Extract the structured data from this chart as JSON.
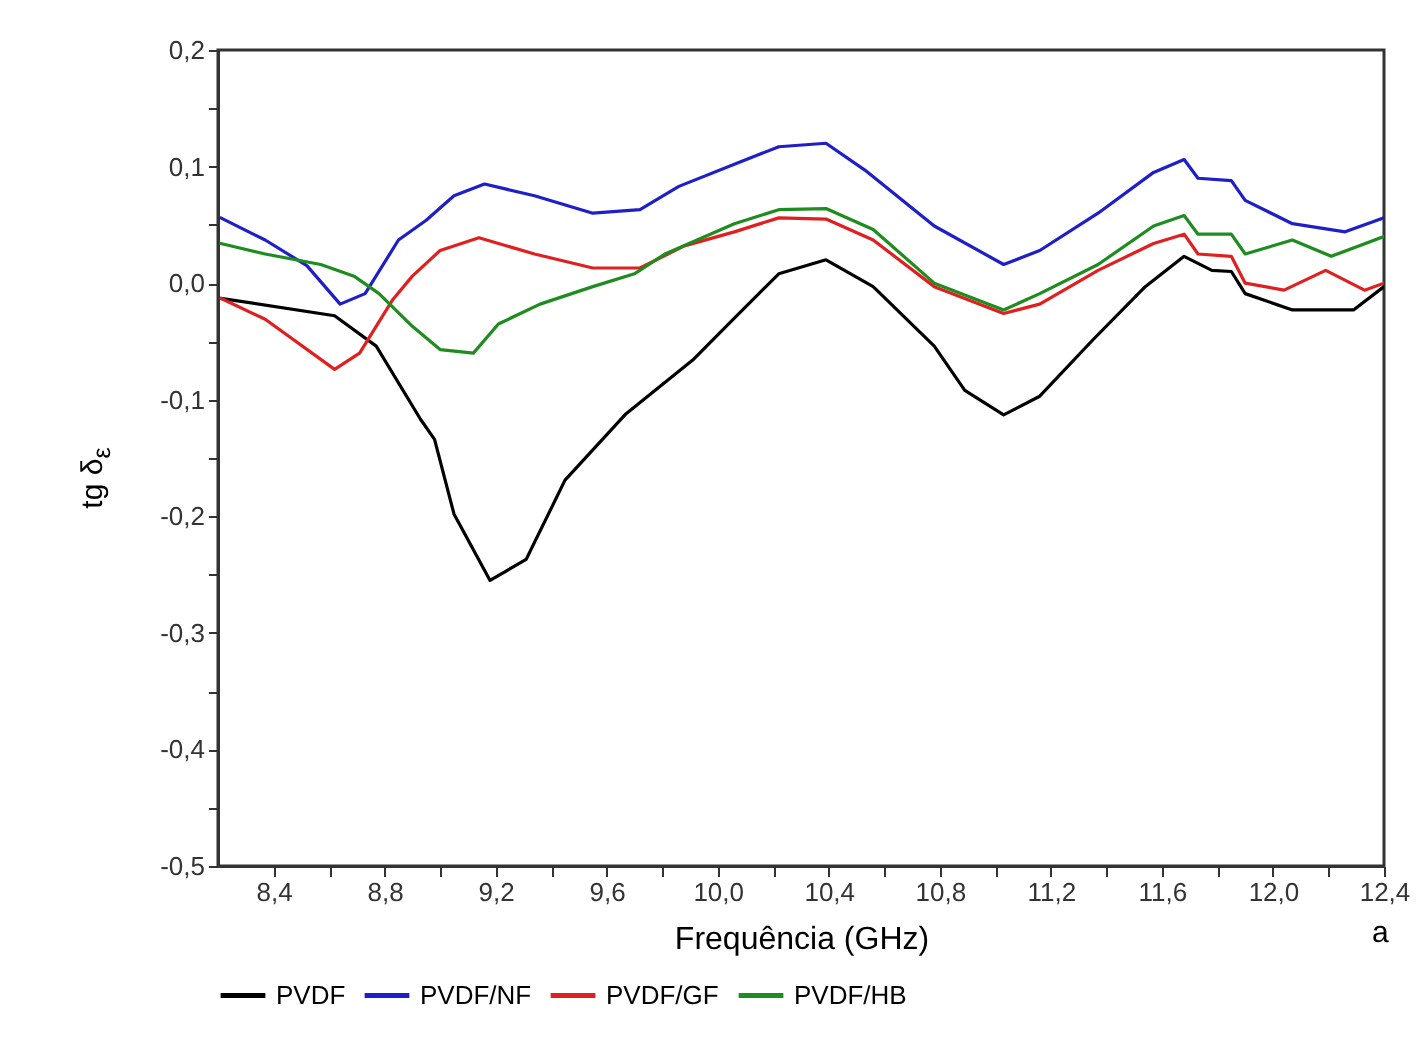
{
  "chart_data": {
    "type": "line",
    "xlabel": "Frequência (GHz)",
    "ylabel": "tg δ$_{ε}$",
    "annotations": [
      "a"
    ],
    "xlim": [
      8.2,
      12.4
    ],
    "ylim": [
      -0.5,
      0.2
    ],
    "xticks": [
      {
        "value": 8.4,
        "label": "8,4"
      },
      {
        "value": 8.6,
        "label": null
      },
      {
        "value": 8.8,
        "label": "8,8"
      },
      {
        "value": 9.0,
        "label": null
      },
      {
        "value": 9.2,
        "label": "9,2"
      },
      {
        "value": 9.4,
        "label": null
      },
      {
        "value": 9.6,
        "label": "9,6"
      },
      {
        "value": 9.8,
        "label": null
      },
      {
        "value": 10.0,
        "label": "10,0"
      },
      {
        "value": 10.2,
        "label": null
      },
      {
        "value": 10.4,
        "label": "10,4"
      },
      {
        "value": 10.6,
        "label": null
      },
      {
        "value": 10.8,
        "label": "10,8"
      },
      {
        "value": 11.0,
        "label": null
      },
      {
        "value": 11.2,
        "label": "11,2"
      },
      {
        "value": 11.4,
        "label": null
      },
      {
        "value": 11.6,
        "label": "11,6"
      },
      {
        "value": 11.8,
        "label": null
      },
      {
        "value": 12.0,
        "label": "12,0"
      },
      {
        "value": 12.2,
        "label": null
      },
      {
        "value": 12.4,
        "label": "12,4"
      }
    ],
    "yticks": [
      {
        "value": 0.2,
        "label": "0,2"
      },
      {
        "value": 0.15,
        "label": null
      },
      {
        "value": 0.1,
        "label": "0,1"
      },
      {
        "value": 0.05,
        "label": null
      },
      {
        "value": 0,
        "label": "0,0"
      },
      {
        "value": -0.05,
        "label": null
      },
      {
        "value": -0.1,
        "label": "-0,1"
      },
      {
        "value": -0.15,
        "label": null
      },
      {
        "value": -0.2,
        "label": "-0,2"
      },
      {
        "value": -0.25,
        "label": null
      },
      {
        "value": -0.3,
        "label": "-0,3"
      },
      {
        "value": -0.35,
        "label": null
      },
      {
        "value": -0.4,
        "label": "-0,4"
      },
      {
        "value": -0.45,
        "label": null
      },
      {
        "value": -0.5,
        "label": "-0,5"
      }
    ],
    "grid": false,
    "legend": "bottom",
    "line_style": "solid",
    "marker": "none",
    "series": [
      {
        "name": "PVDF",
        "color": "#000000",
        "x": [
          8.21,
          8.62,
          8.77,
          8.93,
          8.98,
          9.05,
          9.18,
          9.31,
          9.45,
          9.67,
          9.91,
          10.06,
          10.22,
          10.39,
          10.56,
          10.78,
          10.89,
          11.03,
          11.16,
          11.35,
          11.54,
          11.68,
          11.78,
          11.85,
          11.9,
          12.07,
          12.29,
          12.4
        ],
        "values": [
          -0.013,
          -0.028,
          -0.054,
          -0.117,
          -0.134,
          -0.198,
          -0.255,
          -0.237,
          -0.169,
          -0.112,
          -0.066,
          -0.03,
          0.008,
          0.02,
          -0.003,
          -0.054,
          -0.092,
          -0.113,
          -0.097,
          -0.049,
          -0.003,
          0.023,
          0.011,
          0.01,
          -0.009,
          -0.023,
          -0.023,
          -0.003
        ]
      },
      {
        "name": "PVDF/NF",
        "color": "#1f1fc8",
        "x": [
          8.21,
          8.37,
          8.52,
          8.64,
          8.73,
          8.85,
          8.95,
          9.05,
          9.16,
          9.34,
          9.55,
          9.72,
          9.86,
          10.06,
          10.22,
          10.39,
          10.53,
          10.78,
          11.03,
          11.16,
          11.37,
          11.57,
          11.68,
          11.73,
          11.85,
          11.9,
          12.07,
          12.26,
          12.4
        ],
        "values": [
          0.056,
          0.037,
          0.015,
          -0.018,
          -0.009,
          0.037,
          0.054,
          0.075,
          0.085,
          0.075,
          0.06,
          0.063,
          0.083,
          0.102,
          0.117,
          0.12,
          0.097,
          0.049,
          0.016,
          0.028,
          0.06,
          0.095,
          0.106,
          0.09,
          0.088,
          0.071,
          0.051,
          0.044,
          0.056
        ]
      },
      {
        "name": "PVDF/GF",
        "color": "#e02020",
        "x": [
          8.21,
          8.37,
          8.62,
          8.71,
          8.83,
          8.9,
          9.0,
          9.14,
          9.34,
          9.55,
          9.72,
          9.88,
          10.06,
          10.22,
          10.39,
          10.56,
          10.78,
          11.03,
          11.16,
          11.37,
          11.57,
          11.68,
          11.73,
          11.85,
          11.9,
          12.04,
          12.19,
          12.33,
          12.4
        ],
        "values": [
          -0.013,
          -0.031,
          -0.074,
          -0.06,
          -0.014,
          0.006,
          0.028,
          0.039,
          0.025,
          0.013,
          0.013,
          0.032,
          0.044,
          0.056,
          0.055,
          0.037,
          -0.003,
          -0.026,
          -0.018,
          0.011,
          0.034,
          0.042,
          0.025,
          0.023,
          0.0,
          -0.006,
          0.011,
          -0.006,
          0.0
        ]
      },
      {
        "name": "PVDF/HB",
        "color": "#1e8c1e",
        "x": [
          8.21,
          8.37,
          8.57,
          8.69,
          8.78,
          8.9,
          9.0,
          9.12,
          9.21,
          9.36,
          9.55,
          9.7,
          9.81,
          10.06,
          10.22,
          10.39,
          10.56,
          10.78,
          11.03,
          11.16,
          11.37,
          11.57,
          11.68,
          11.73,
          11.85,
          11.9,
          12.07,
          12.21,
          12.4
        ],
        "values": [
          0.034,
          0.025,
          0.016,
          0.006,
          -0.009,
          -0.037,
          -0.057,
          -0.06,
          -0.035,
          -0.018,
          -0.003,
          0.008,
          0.025,
          0.051,
          0.063,
          0.064,
          0.046,
          0.0,
          -0.023,
          -0.009,
          0.016,
          0.049,
          0.058,
          0.042,
          0.042,
          0.025,
          0.037,
          0.023,
          0.04
        ]
      }
    ]
  }
}
